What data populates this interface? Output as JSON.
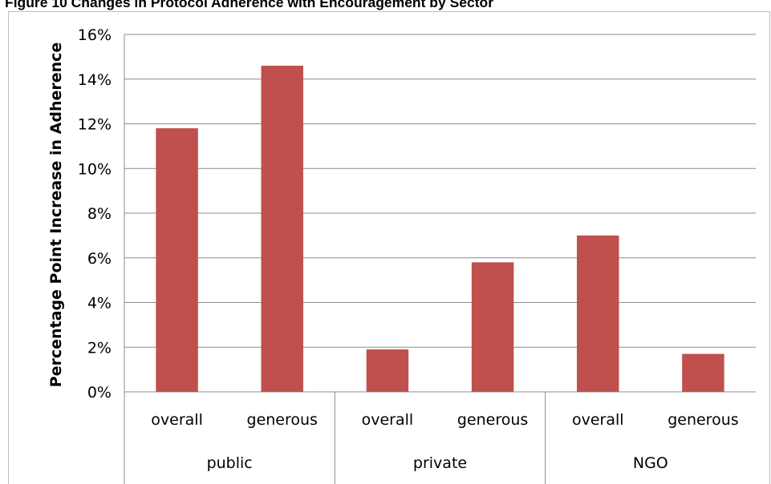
{
  "chart_data": {
    "type": "bar",
    "title": "Figure 10 Changes in Protocol Adherence with Encouragement by Sector",
    "xlabel": "",
    "ylabel": "Percentage Point Increase in Adherence",
    "ylim": [
      0,
      16
    ],
    "yticks": [
      "0%",
      "2%",
      "4%",
      "6%",
      "8%",
      "10%",
      "12%",
      "14%",
      "16%"
    ],
    "groups": [
      "public",
      "private",
      "NGO"
    ],
    "categories": [
      "overall",
      "generous",
      "overall",
      "generous",
      "overall",
      "generous"
    ],
    "values": [
      11.8,
      14.6,
      1.9,
      5.8,
      7.0,
      1.7
    ],
    "bar_color": "#c0504d",
    "grid": true,
    "legend": "none"
  }
}
